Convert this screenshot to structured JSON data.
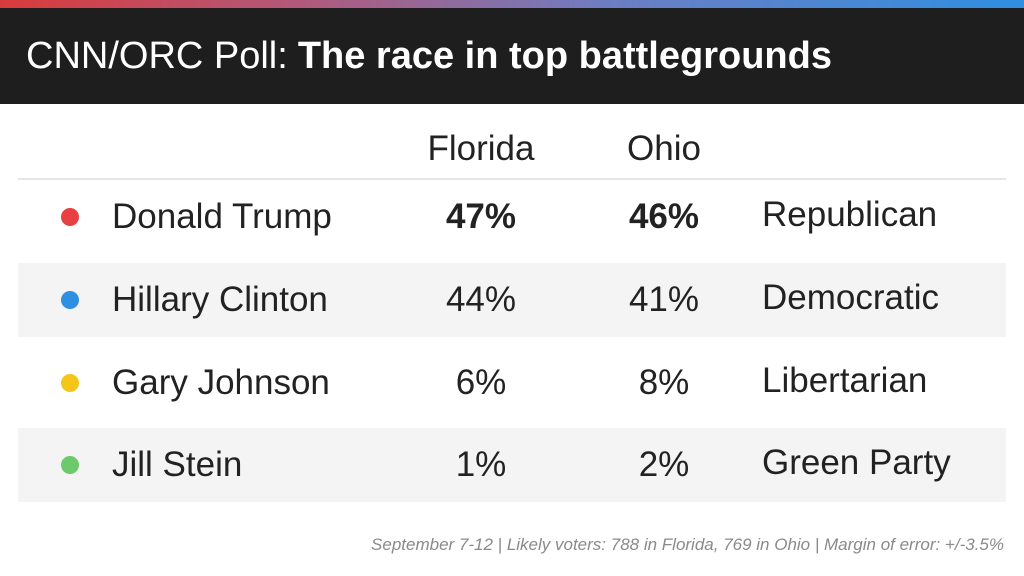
{
  "header": {
    "title_prefix": "CNN/ORC Poll:",
    "title_main": "The race in top battlegrounds"
  },
  "colors": {
    "republican": "#e84040",
    "democratic": "#2f8fe0",
    "libertarian": "#f5c518",
    "green": "#6cc96c"
  },
  "chart_data": {
    "type": "table",
    "title": "CNN/ORC Poll: The race in top battlegrounds",
    "columns": [
      "Florida",
      "Ohio"
    ],
    "rows": [
      {
        "candidate": "Donald Trump",
        "florida": "47%",
        "ohio": "46%",
        "party": "Republican",
        "dot_color": "#e84040",
        "lead": true
      },
      {
        "candidate": "Hillary Clinton",
        "florida": "44%",
        "ohio": "41%",
        "party": "Democratic",
        "dot_color": "#2f8fe0",
        "lead": false
      },
      {
        "candidate": "Gary Johnson",
        "florida": "6%",
        "ohio": "8%",
        "party": "Libertarian",
        "dot_color": "#f5c518",
        "lead": false
      },
      {
        "candidate": "Jill Stein",
        "florida": "1%",
        "ohio": "2%",
        "party": "Green Party",
        "dot_color": "#6cc96c",
        "lead": false
      }
    ]
  },
  "footer": {
    "note": "September 7-12 | Likely voters: 788 in Florida, 769 in Ohio | Margin of error: +/-3.5%"
  }
}
